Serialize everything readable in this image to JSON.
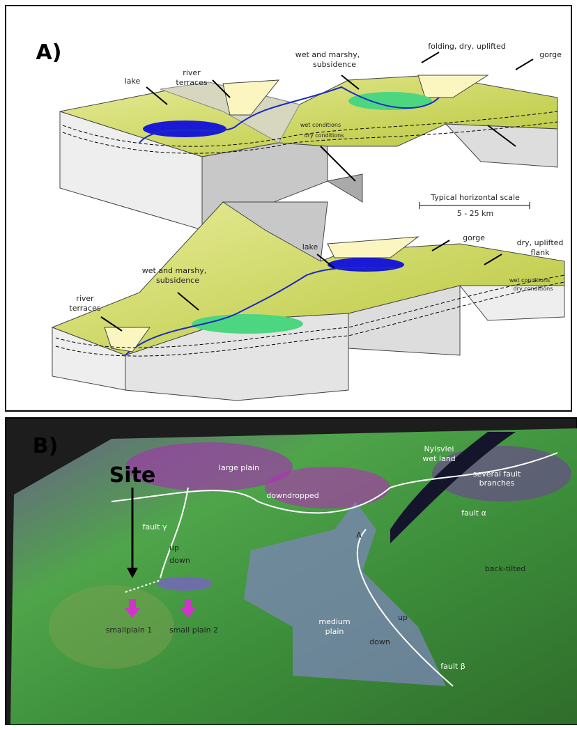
{
  "panel_a": {
    "label": "A)",
    "upper": {
      "river_terraces": [
        "river",
        "terraces"
      ],
      "lake": "lake",
      "wet_marshy": [
        "wet and marshy,",
        "subsidence"
      ],
      "folding": "folding, dry, uplifted",
      "gorge": "gorge",
      "wet_conditions": "wet conditions",
      "dry_conditions": "dry conditions"
    },
    "scale": {
      "title": "Typical horizontal scale",
      "range": "5 - 25 km"
    },
    "lower": {
      "gorge": "gorge",
      "dry_uplifted": [
        "dry, uplifted",
        "flank"
      ],
      "lake": "lake",
      "wet_marshy": [
        "wet and marshy,",
        "subsidence"
      ],
      "river_terraces": [
        "river",
        "terraces"
      ],
      "wet_conditions": "wet conditions",
      "dry_conditions": "dry conditions"
    }
  },
  "panel_b": {
    "label": "B)",
    "nylsvlei": [
      "Nylsvlei",
      "wet land"
    ],
    "large_plain": "large plain",
    "fault_branches": [
      "several fault",
      "branches"
    ],
    "downdropped": "downdropped",
    "fault_alpha": "fault α",
    "site": "Site",
    "fault_gamma": "fault γ",
    "gamma_up": "up",
    "gamma_down": "down",
    "point_a": "A",
    "back_tilted": "back-tilted",
    "medium_plain": [
      "medium",
      "plain"
    ],
    "beta_up": "up",
    "beta_down": "down",
    "fault_beta": "fault β",
    "small_plain_1": "smallplain 1",
    "small_plain_2": "small plain 2"
  }
}
